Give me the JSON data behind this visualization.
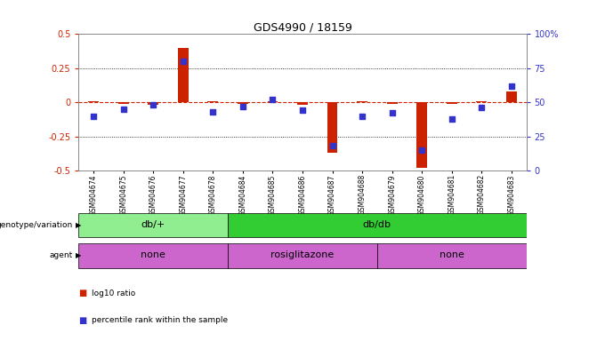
{
  "title": "GDS4990 / 18159",
  "samples": [
    "GSM904674",
    "GSM904675",
    "GSM904676",
    "GSM904677",
    "GSM904678",
    "GSM904684",
    "GSM904685",
    "GSM904686",
    "GSM904687",
    "GSM904688",
    "GSM904679",
    "GSM904680",
    "GSM904681",
    "GSM904682",
    "GSM904683"
  ],
  "log10_ratio": [
    0.01,
    -0.01,
    -0.02,
    0.4,
    0.01,
    -0.01,
    0.01,
    -0.02,
    -0.37,
    0.01,
    -0.01,
    -0.48,
    -0.01,
    0.01,
    0.08
  ],
  "percentile_rank": [
    40,
    45,
    48,
    80,
    43,
    47,
    52,
    44,
    18,
    40,
    42,
    15,
    38,
    46,
    62
  ],
  "genotype_groups": [
    {
      "label": "db/+",
      "start": 0,
      "end": 5,
      "color": "#90ee90"
    },
    {
      "label": "db/db",
      "start": 5,
      "end": 15,
      "color": "#32cd32"
    }
  ],
  "agent_groups": [
    {
      "label": "none",
      "start": 0,
      "end": 5,
      "color": "#cc66cc"
    },
    {
      "label": "rosiglitazone",
      "start": 5,
      "end": 10,
      "color": "#cc66cc"
    },
    {
      "label": "none",
      "start": 10,
      "end": 15,
      "color": "#cc66cc"
    }
  ],
  "bar_color": "#cc2200",
  "dot_color": "#3333cc",
  "ref_line_color": "#cc2200",
  "ylim": [
    -0.5,
    0.5
  ],
  "yticks": [
    -0.5,
    -0.25,
    0,
    0.25,
    0.5
  ],
  "right_yticks": [
    0,
    25,
    50,
    75,
    100
  ],
  "right_ylabels": [
    "0",
    "25",
    "50",
    "75",
    "100%"
  ]
}
